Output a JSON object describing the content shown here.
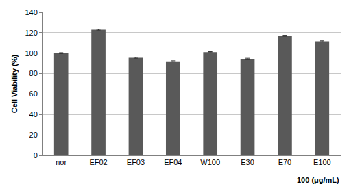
{
  "chart_data": {
    "type": "bar",
    "ylabel": "Cell Viability (%)",
    "xlabel": "100 (μg/mL)",
    "categories": [
      "nor",
      "EF02",
      "EF03",
      "EF04",
      "W100",
      "E30",
      "E70",
      "E100"
    ],
    "values": [
      100,
      123,
      95.5,
      92,
      101,
      94.5,
      117,
      111.5
    ],
    "errors": [
      0.5,
      0.5,
      0.5,
      0.5,
      0.5,
      0.5,
      0.5,
      0.5
    ],
    "color": "#595959",
    "ylim": [
      0,
      140
    ],
    "yticks": [
      0,
      20,
      40,
      60,
      80,
      100,
      120,
      140
    ],
    "grid": true
  }
}
